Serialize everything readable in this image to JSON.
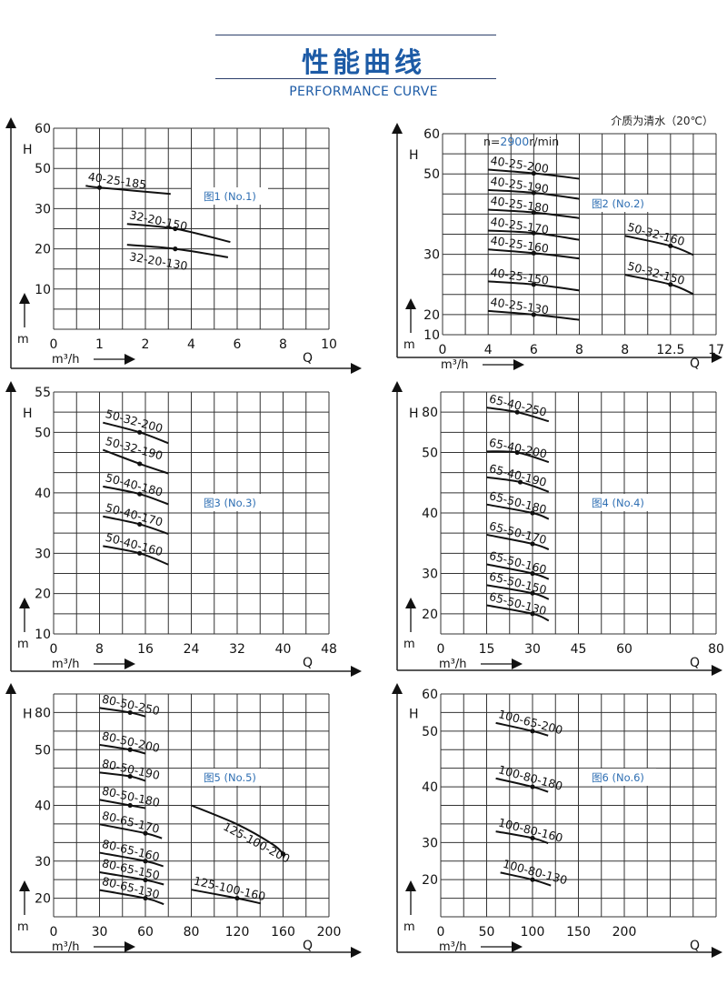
{
  "header": {
    "title": "性能曲线",
    "subtitle": "PERFORMANCE CURVE"
  },
  "colors": {
    "title": "#1d5ba6",
    "figure_label": "#2f6fb3",
    "grid": "#333333",
    "curve": "#111111",
    "speed_value": "#2f6fb3"
  },
  "chart_data": [
    {
      "type": "line",
      "figure_label": "图1 (No.1)",
      "xlabel": "Q",
      "x_unit": "m³/h",
      "ylabel": "H",
      "y_unit": "m",
      "grid": true,
      "x_ticks": [
        0,
        null,
        1,
        null,
        2,
        null,
        4,
        null,
        6,
        null,
        8,
        null,
        10
      ],
      "y_ticks": [
        60,
        null,
        50,
        null,
        30,
        null,
        20,
        null,
        10,
        null,
        null
      ],
      "series": [
        {
          "name": "40-25-185",
          "points": [
            [
              0.7,
              41.4
            ],
            [
              1,
              40.5
            ],
            [
              3.1,
              37.3
            ]
          ],
          "duty_point": [
            1,
            40.5
          ]
        },
        {
          "name": "32-20-150",
          "points": [
            [
              1.6,
              26.2
            ],
            [
              3.3,
              25.0
            ],
            [
              5.7,
              21.7
            ]
          ],
          "duty_point": [
            3.3,
            25.0
          ]
        },
        {
          "name": "32-20-130",
          "points": [
            [
              1.6,
              21.0
            ],
            [
              3.3,
              20.0
            ],
            [
              5.6,
              17.9
            ]
          ],
          "duty_point": [
            3.3,
            20.0
          ]
        }
      ]
    },
    {
      "type": "line",
      "figure_label": "图2 (No.2)",
      "xlabel": "Q",
      "x_unit": "m³/h",
      "ylabel": "H",
      "y_unit": "m",
      "grid": true,
      "note": "介质为清水（20℃）",
      "speed": {
        "prefix": "n=",
        "value": "2900",
        "suffix": "r/min"
      },
      "x_ticks": [
        0,
        null,
        4,
        null,
        6,
        null,
        8,
        null,
        8,
        null,
        12.5,
        null,
        17
      ],
      "y_ticks": [
        60,
        null,
        50,
        null,
        null,
        null,
        30,
        null,
        null,
        20,
        10
      ],
      "series": [
        {
          "name": "40-25-200",
          "points": [
            [
              4,
              51.05
            ],
            [
              6,
              50.15
            ],
            [
              8,
              48.8
            ]
          ],
          "duty_point": [
            6,
            50.15
          ]
        },
        {
          "name": "40-25-190",
          "points": [
            [
              4,
              46.0
            ],
            [
              6,
              45.3
            ],
            [
              8,
              43.8
            ]
          ],
          "duty_point": [
            6,
            45.3
          ]
        },
        {
          "name": "40-25-180",
          "points": [
            [
              4,
              41.1
            ],
            [
              6,
              40.4
            ],
            [
              8,
              39.0
            ]
          ],
          "duty_point": [
            6,
            40.4
          ]
        },
        {
          "name": "40-25-170",
          "points": [
            [
              4,
              35.9
            ],
            [
              6,
              35.3
            ],
            [
              8,
              33.6
            ]
          ],
          "duty_point": [
            6,
            35.3
          ]
        },
        {
          "name": "40-25-160",
          "points": [
            [
              4,
              31.2
            ],
            [
              6,
              30.3
            ],
            [
              8,
              29.3
            ]
          ],
          "duty_point": [
            6,
            30.3
          ]
        },
        {
          "name": "40-25-150",
          "points": [
            [
              4,
              25.5
            ],
            [
              6,
              25.0
            ],
            [
              8,
              24.0
            ]
          ],
          "duty_point": [
            6,
            25.0
          ]
        },
        {
          "name": "40-25-130",
          "points": [
            [
              4,
              20.6
            ],
            [
              6,
              20.0
            ],
            [
              8,
              17.4
            ]
          ],
          "duty_point": [
            6,
            20.0
          ]
        },
        {
          "name": "50-32-160",
          "axis_part": "right",
          "points": [
            [
              8,
              34.6
            ],
            [
              12.5,
              32.1
            ],
            [
              14.75,
              29.9
            ]
          ],
          "duty_point": [
            12.5,
            32.1
          ]
        },
        {
          "name": "50-32-150",
          "axis_part": "right",
          "points": [
            [
              8,
              26.6
            ],
            [
              12.5,
              25.0
            ],
            [
              14.75,
              23.4
            ]
          ],
          "duty_point": [
            12.5,
            25.0
          ]
        }
      ]
    },
    {
      "type": "line",
      "figure_label": "图3 (No.3)",
      "xlabel": "Q",
      "x_unit": "m³/h",
      "ylabel": "H",
      "y_unit": "m",
      "grid": true,
      "x_ticks": [
        0,
        null,
        8,
        null,
        16,
        null,
        24,
        null,
        32,
        null,
        40,
        null,
        48
      ],
      "y_ticks": [
        55,
        null,
        50,
        null,
        null,
        40,
        null,
        null,
        30,
        null,
        20,
        null,
        10
      ],
      "series": [
        {
          "name": "50-32-200",
          "points": [
            [
              8.6,
              51.2
            ],
            [
              15,
              50.0
            ],
            [
              20,
              48.2
            ]
          ],
          "duty_point": [
            15,
            50.0
          ]
        },
        {
          "name": "50-32-190",
          "points": [
            [
              8.6,
              47.1
            ],
            [
              15,
              44.8
            ],
            [
              20,
              43.2
            ]
          ],
          "duty_point": [
            15,
            44.8
          ]
        },
        {
          "name": "50-40-180",
          "points": [
            [
              8.6,
              41.05
            ],
            [
              15,
              39.8
            ],
            [
              20,
              38.1
            ]
          ],
          "duty_point": [
            15,
            39.8
          ]
        },
        {
          "name": "50-40-170",
          "points": [
            [
              8.6,
              36.1
            ],
            [
              15,
              34.8
            ],
            [
              20,
              33.2
            ]
          ],
          "duty_point": [
            15,
            34.8
          ]
        },
        {
          "name": "50-40-160",
          "points": [
            [
              8.6,
              31.2
            ],
            [
              15,
              30.0
            ],
            [
              20,
              27.2
            ]
          ],
          "duty_point": [
            15,
            30.0
          ]
        }
      ]
    },
    {
      "type": "line",
      "figure_label": "图4 (No.4)",
      "xlabel": "Q",
      "x_unit": "m³/h",
      "ylabel": "H",
      "y_unit": "m",
      "grid": true,
      "x_ticks": [
        0,
        null,
        15,
        null,
        30,
        null,
        45,
        null,
        60,
        null,
        null,
        null,
        80
      ],
      "y_ticks": [
        null,
        80,
        null,
        50,
        null,
        null,
        40,
        null,
        null,
        30,
        null,
        20,
        null
      ],
      "series": [
        {
          "name": "65-40-250",
          "points": [
            [
              15,
              83.4
            ],
            [
              25,
              80.0
            ],
            [
              35.3,
              73.2
            ]
          ],
          "duty_point": [
            25,
            80.0
          ]
        },
        {
          "name": "65-40-200",
          "points": [
            [
              15,
              50.8
            ],
            [
              25,
              50.0
            ],
            [
              35.3,
              48.4
            ]
          ],
          "duty_point": [
            25,
            50.0
          ]
        },
        {
          "name": "65-40-190",
          "points": [
            [
              15,
              45.9
            ],
            [
              26,
              45.1
            ],
            [
              35.3,
              43.5
            ]
          ],
          "duty_point": [
            26,
            45.1
          ]
        },
        {
          "name": "65-50-180",
          "points": [
            [
              15,
              41.4
            ],
            [
              30,
              40.0
            ],
            [
              35.3,
              39.0
            ]
          ],
          "duty_point": [
            30,
            40.0
          ]
        },
        {
          "name": "65-50-170",
          "points": [
            [
              15,
              36.4
            ],
            [
              30,
              34.9
            ],
            [
              35.3,
              33.98
            ]
          ],
          "duty_point": [
            30,
            34.9
          ]
        },
        {
          "name": "65-50-160",
          "points": [
            [
              15,
              31.5
            ],
            [
              30,
              30.0
            ],
            [
              35.3,
              28.6
            ]
          ],
          "duty_point": [
            30,
            30.0
          ]
        },
        {
          "name": "65-50-150",
          "points": [
            [
              15,
              27.1
            ],
            [
              30,
              25.1
            ],
            [
              35.3,
              23.6
            ]
          ],
          "duty_point": [
            30,
            25.1
          ]
        },
        {
          "name": "65-50-130",
          "points": [
            [
              15,
              22.1
            ],
            [
              30,
              20.0
            ],
            [
              35.3,
              18.3
            ]
          ],
          "duty_point": [
            30,
            20.0
          ]
        }
      ]
    },
    {
      "type": "line",
      "figure_label": "图5 (No.5)",
      "xlabel": "Q",
      "x_unit": "m³/h",
      "ylabel": "H",
      "y_unit": "m",
      "grid": true,
      "x_ticks": [
        0,
        null,
        30,
        null,
        60,
        null,
        80,
        null,
        120,
        null,
        160,
        null,
        200
      ],
      "y_ticks": [
        null,
        80,
        null,
        50,
        null,
        null,
        40,
        null,
        null,
        30,
        null,
        20,
        null
      ],
      "series": [
        {
          "name": "80-50-250",
          "points": [
            [
              30,
              83.7
            ],
            [
              50,
              80.0
            ],
            [
              60,
              76.8
            ]
          ],
          "duty_point": [
            50,
            80.0
          ]
        },
        {
          "name": "80-50-200",
          "points": [
            [
              30,
              53.9
            ],
            [
              50,
              50.0
            ],
            [
              60,
              49.3
            ]
          ],
          "duty_point": [
            50,
            50.0
          ]
        },
        {
          "name": "80-50-190",
          "points": [
            [
              30,
              45.9
            ],
            [
              50,
              45.2
            ],
            [
              60,
              44.4
            ]
          ],
          "duty_point": [
            50,
            45.2
          ]
        },
        {
          "name": "80-50-180",
          "points": [
            [
              30,
              41.0
            ],
            [
              50,
              40.0
            ],
            [
              60,
              39.5
            ]
          ],
          "duty_point": [
            50,
            40.0
          ]
        },
        {
          "name": "80-65-170",
          "points": [
            [
              30,
              36.6
            ],
            [
              60,
              35.0
            ],
            [
              67.2,
              34.1
            ]
          ],
          "duty_point": [
            60,
            35.0
          ]
        },
        {
          "name": "80-65-160",
          "points": [
            [
              30,
              31.5
            ],
            [
              60,
              30.0
            ],
            [
              67.8,
              28.6
            ]
          ],
          "duty_point": [
            60,
            30.0
          ]
        },
        {
          "name": "80-65-150",
          "points": [
            [
              30,
              27.0
            ],
            [
              60,
              24.9
            ],
            [
              68,
              23.7
            ]
          ],
          "duty_point": [
            60,
            24.9
          ]
        },
        {
          "name": "80-65-130",
          "points": [
            [
              30,
              22.2
            ],
            [
              60,
              20.0
            ],
            [
              68,
              18.4
            ]
          ],
          "duty_point": [
            60,
            20.0
          ]
        },
        {
          "name": "125-100-200",
          "points": [
            [
              80,
              40.0
            ],
            [
              120,
              36.6
            ],
            [
              151,
              33.0
            ],
            [
              160,
              31.3
            ]
          ],
          "duty_point": [
            160,
            31.3
          ]
        },
        {
          "name": "125-100-160",
          "points": [
            [
              80,
              22.3
            ],
            [
              120,
              20.0
            ],
            [
              140.5,
              18.6
            ]
          ],
          "duty_point": [
            120,
            20.0
          ]
        }
      ]
    },
    {
      "type": "line",
      "figure_label": "图6 (No.6)",
      "xlabel": "Q",
      "x_unit": "m³/h",
      "ylabel": "H",
      "y_unit": "m",
      "grid": true,
      "x_ticks": [
        0,
        null,
        50,
        null,
        100,
        null,
        150,
        null,
        200,
        null,
        null,
        null,
        null
      ],
      "y_ticks": [
        60,
        null,
        50,
        null,
        null,
        40,
        null,
        null,
        30,
        null,
        20,
        null,
        null
      ],
      "series": [
        {
          "name": "100-65-200",
          "points": [
            [
              60,
              52.2
            ],
            [
              100,
              50.0
            ],
            [
              117,
              49.2
            ]
          ],
          "duty_point": [
            100,
            50.0
          ]
        },
        {
          "name": "100-80-180",
          "points": [
            [
              60,
              41.5
            ],
            [
              100,
              40.0
            ],
            [
              117,
              39.1
            ]
          ],
          "duty_point": [
            100,
            40.0
          ]
        },
        {
          "name": "100-80-160",
          "points": [
            [
              60,
              32.0
            ],
            [
              100,
              30.8
            ],
            [
              117,
              29.8
            ]
          ],
          "duty_point": [
            100,
            30.8
          ]
        },
        {
          "name": "100-80-130",
          "points": [
            [
              65,
              21.9
            ],
            [
              100,
              20.0
            ],
            [
              120,
              18.4
            ]
          ],
          "duty_point": [
            100,
            20.0
          ]
        }
      ]
    }
  ]
}
